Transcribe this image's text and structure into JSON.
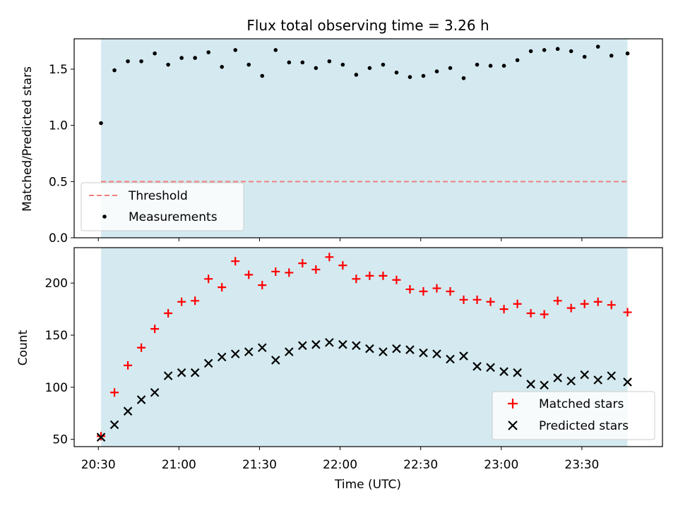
{
  "chart_data": {
    "title": "Flux total observing time = 3.26 h",
    "xlabel": "Time (UTC)",
    "x_ticks": [
      "20:30",
      "21:00",
      "21:30",
      "22:00",
      "22:30",
      "23:00",
      "23:30"
    ],
    "x_tick_minutes": [
      1230,
      1260,
      1290,
      1320,
      1350,
      1380,
      1410
    ],
    "xlim_minutes": [
      1221,
      1440
    ],
    "shaded_span_minutes": [
      1231,
      1427
    ],
    "shade_color": "#d4eaf0",
    "panels": [
      {
        "type": "scatter",
        "ylabel": "Matched/Predicted stars",
        "ylim": [
          0,
          1.77
        ],
        "y_ticks": [
          0.0,
          0.5,
          1.0,
          1.5
        ],
        "y_tick_labels": [
          "0.0",
          "0.5",
          "1.0",
          "1.5"
        ],
        "threshold": {
          "name": "Threshold",
          "value": 0.5,
          "color": "#f08080"
        },
        "series": [
          {
            "name": "Measurements",
            "marker": "dot",
            "color": "#000000",
            "x_minutes": [
              1231,
              1236,
              1241,
              1246,
              1251,
              1256,
              1261,
              1266,
              1271,
              1276,
              1281,
              1286,
              1291,
              1296,
              1301,
              1306,
              1311,
              1316,
              1321,
              1326,
              1331,
              1336,
              1341,
              1346,
              1351,
              1356,
              1361,
              1366,
              1371,
              1376,
              1381,
              1386,
              1391,
              1396,
              1401,
              1406,
              1411,
              1416,
              1421,
              1427
            ],
            "values": [
              1.02,
              1.49,
              1.57,
              1.57,
              1.64,
              1.54,
              1.6,
              1.6,
              1.65,
              1.52,
              1.67,
              1.54,
              1.44,
              1.67,
              1.56,
              1.56,
              1.51,
              1.57,
              1.54,
              1.45,
              1.51,
              1.54,
              1.47,
              1.43,
              1.44,
              1.48,
              1.51,
              1.42,
              1.54,
              1.53,
              1.53,
              1.58,
              1.66,
              1.67,
              1.68,
              1.66,
              1.61,
              1.7,
              1.62,
              1.64
            ]
          }
        ],
        "legend": {
          "placement": "lower-left"
        }
      },
      {
        "type": "scatter",
        "ylabel": "Count",
        "ylim": [
          43,
          234
        ],
        "y_ticks": [
          50,
          100,
          150,
          200
        ],
        "y_tick_labels": [
          "50",
          "100",
          "150",
          "200"
        ],
        "series": [
          {
            "name": "Matched stars",
            "marker": "plus",
            "color": "#ff0000",
            "x_minutes": [
              1231,
              1236,
              1241,
              1246,
              1251,
              1256,
              1261,
              1266,
              1271,
              1276,
              1281,
              1286,
              1291,
              1296,
              1301,
              1306,
              1311,
              1316,
              1321,
              1326,
              1331,
              1336,
              1341,
              1346,
              1351,
              1356,
              1361,
              1366,
              1371,
              1376,
              1381,
              1386,
              1391,
              1396,
              1401,
              1406,
              1411,
              1416,
              1421,
              1427
            ],
            "values": [
              53,
              95,
              121,
              138,
              156,
              171,
              182,
              183,
              204,
              196,
              221,
              208,
              198,
              211,
              210,
              219,
              213,
              225,
              217,
              204,
              207,
              207,
              203,
              194,
              192,
              195,
              192,
              184,
              184,
              182,
              175,
              180,
              171,
              170,
              183,
              176,
              180,
              182,
              179,
              172
            ]
          },
          {
            "name": "Predicted stars",
            "marker": "x",
            "color": "#000000",
            "x_minutes": [
              1231,
              1236,
              1241,
              1246,
              1251,
              1256,
              1261,
              1266,
              1271,
              1276,
              1281,
              1286,
              1291,
              1296,
              1301,
              1306,
              1311,
              1316,
              1321,
              1326,
              1331,
              1336,
              1341,
              1346,
              1351,
              1356,
              1361,
              1366,
              1371,
              1376,
              1381,
              1386,
              1391,
              1396,
              1401,
              1406,
              1411,
              1416,
              1421,
              1427
            ],
            "values": [
              52,
              64,
              77,
              88,
              95,
              111,
              114,
              114,
              123,
              129,
              132,
              134,
              138,
              126,
              134,
              140,
              141,
              143,
              141,
              140,
              137,
              134,
              137,
              136,
              133,
              132,
              127,
              130,
              120,
              119,
              115,
              114,
              103,
              102,
              109,
              106,
              112,
              107,
              111,
              105
            ]
          }
        ],
        "legend": {
          "placement": "lower-right"
        }
      }
    ]
  }
}
